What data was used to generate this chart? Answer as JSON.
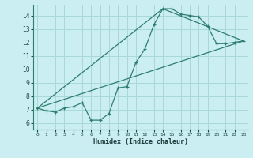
{
  "xlabel": "Humidex (Indice chaleur)",
  "ylabel": "",
  "bg_color": "#cbeef3",
  "line_color": "#2e7d6e",
  "grid_color": "#a8d8d8",
  "xlim": [
    -0.5,
    23.5
  ],
  "ylim": [
    5.5,
    14.8
  ],
  "xticks": [
    0,
    1,
    2,
    3,
    4,
    5,
    6,
    7,
    8,
    9,
    10,
    11,
    12,
    13,
    14,
    15,
    16,
    17,
    18,
    19,
    20,
    21,
    22,
    23
  ],
  "yticks": [
    6,
    7,
    8,
    9,
    10,
    11,
    12,
    13,
    14
  ],
  "series1_x": [
    0,
    1,
    2,
    3,
    4,
    5,
    6,
    7,
    8,
    9,
    10,
    11,
    12,
    13,
    14,
    15,
    16,
    17,
    18,
    19,
    20,
    21,
    22,
    23
  ],
  "series1_y": [
    7.1,
    6.9,
    6.8,
    7.1,
    7.2,
    7.5,
    6.2,
    6.2,
    6.7,
    8.6,
    8.7,
    10.5,
    11.5,
    13.3,
    14.5,
    14.5,
    14.1,
    14.0,
    13.9,
    13.2,
    11.9,
    11.9,
    12.0,
    12.1
  ],
  "series2_x": [
    0,
    23
  ],
  "series2_y": [
    7.1,
    12.1
  ],
  "series3_x": [
    0,
    14,
    23
  ],
  "series3_y": [
    7.1,
    14.5,
    12.1
  ],
  "xlabel_fontsize": 6.0,
  "tick_fontsize_x": 4.5,
  "tick_fontsize_y": 5.5
}
